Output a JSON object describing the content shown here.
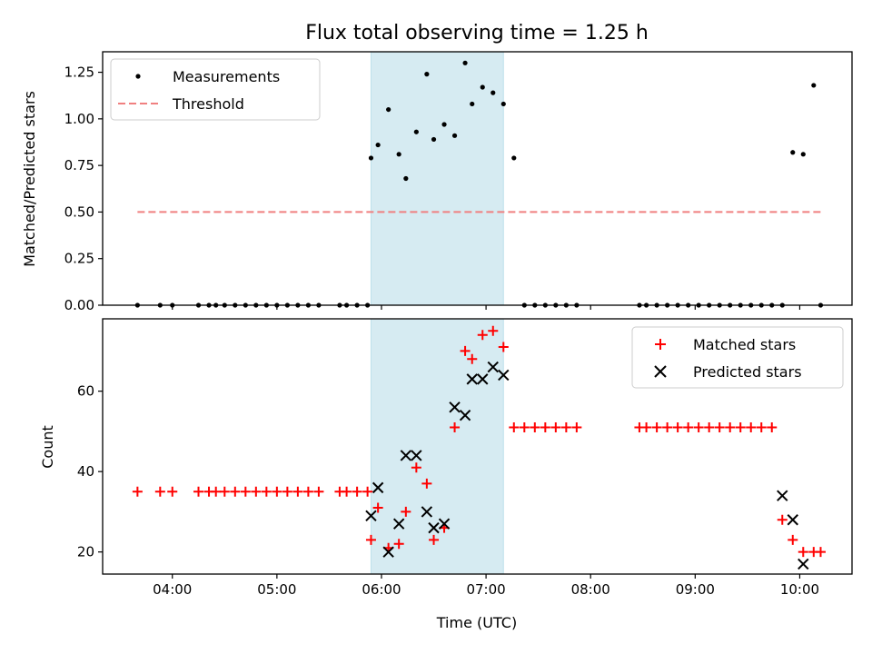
{
  "chart_data": [
    {
      "type": "scatter",
      "title": "Flux total observing time = 1.25 h",
      "xlabel": "",
      "ylabel": "Matched/Predicted stars",
      "xlim": [
        "03:20",
        "10:30"
      ],
      "ylim": [
        0,
        1.36
      ],
      "yticks": [
        "0.00",
        "0.25",
        "0.50",
        "0.75",
        "1.00",
        "1.25"
      ],
      "grid": false,
      "legend": {
        "position": "top-left"
      },
      "shaded_interval": [
        "05:54",
        "07:10"
      ],
      "shaded_color": "#add8e6",
      "series": [
        {
          "name": "Measurements",
          "marker": "dot",
          "color": "#000000",
          "x": [
            "03:40",
            "03:53",
            "04:00",
            "04:15",
            "04:21",
            "04:25",
            "04:30",
            "04:36",
            "04:42",
            "04:48",
            "04:54",
            "05:00",
            "05:06",
            "05:12",
            "05:18",
            "05:24",
            "05:36",
            "05:40",
            "05:46",
            "05:52",
            "05:54",
            "05:58",
            "06:04",
            "06:10",
            "06:14",
            "06:20",
            "06:26",
            "06:30",
            "06:36",
            "06:42",
            "06:48",
            "06:52",
            "06:58",
            "07:04",
            "07:10",
            "07:16",
            "07:22",
            "07:28",
            "07:34",
            "07:40",
            "07:46",
            "07:52",
            "08:28",
            "08:32",
            "08:38",
            "08:44",
            "08:50",
            "08:56",
            "09:02",
            "09:08",
            "09:14",
            "09:20",
            "09:26",
            "09:32",
            "09:38",
            "09:44",
            "09:50",
            "09:56",
            "10:02",
            "10:08",
            "10:12"
          ],
          "y": [
            0,
            0,
            0,
            0,
            0,
            0,
            0,
            0,
            0,
            0,
            0,
            0,
            0,
            0,
            0,
            0,
            0,
            0,
            0,
            0,
            0.79,
            0.86,
            1.05,
            0.81,
            0.68,
            0.93,
            1.24,
            0.89,
            0.97,
            0.91,
            1.3,
            1.08,
            1.17,
            1.14,
            1.08,
            0.79,
            0,
            0,
            0,
            0,
            0,
            0,
            0,
            0,
            0,
            0,
            0,
            0,
            0,
            0,
            0,
            0,
            0,
            0,
            0,
            0,
            0,
            0.82,
            0.81,
            1.18,
            0
          ]
        },
        {
          "name": "Threshold",
          "style": "dashed",
          "color": "#f08080",
          "x": [
            "03:40",
            "10:12"
          ],
          "y": [
            0.5,
            0.5
          ]
        }
      ]
    },
    {
      "type": "scatter",
      "title": "",
      "xlabel": "Time (UTC)",
      "ylabel": "Count",
      "xlim": [
        "03:20",
        "10:30"
      ],
      "ylim": [
        14.5,
        78
      ],
      "yticks": [
        "20",
        "40",
        "60"
      ],
      "xticks": [
        "04:00",
        "05:00",
        "06:00",
        "07:00",
        "08:00",
        "09:00",
        "10:00"
      ],
      "grid": false,
      "legend": {
        "position": "top-right"
      },
      "shaded_interval": [
        "05:54",
        "07:10"
      ],
      "shaded_color": "#add8e6",
      "series": [
        {
          "name": "Matched stars",
          "marker": "plus",
          "color": "#ff0000",
          "x": [
            "03:40",
            "03:53",
            "04:00",
            "04:15",
            "04:21",
            "04:25",
            "04:30",
            "04:36",
            "04:42",
            "04:48",
            "04:54",
            "05:00",
            "05:06",
            "05:12",
            "05:18",
            "05:24",
            "05:36",
            "05:40",
            "05:46",
            "05:52",
            "05:54",
            "05:58",
            "06:04",
            "06:10",
            "06:14",
            "06:20",
            "06:26",
            "06:30",
            "06:36",
            "06:42",
            "06:48",
            "06:52",
            "06:58",
            "07:04",
            "07:10",
            "07:16",
            "07:22",
            "07:28",
            "07:34",
            "07:40",
            "07:46",
            "07:52",
            "08:28",
            "08:32",
            "08:38",
            "08:44",
            "08:50",
            "08:56",
            "09:02",
            "09:08",
            "09:14",
            "09:20",
            "09:26",
            "09:32",
            "09:38",
            "09:44",
            "09:50",
            "09:56",
            "10:02",
            "10:08",
            "10:12"
          ],
          "y": [
            35,
            35,
            35,
            35,
            35,
            35,
            35,
            35,
            35,
            35,
            35,
            35,
            35,
            35,
            35,
            35,
            35,
            35,
            35,
            35,
            23,
            31,
            21,
            22,
            30,
            41,
            37,
            23,
            26,
            51,
            70,
            68,
            74,
            75,
            71,
            51,
            51,
            51,
            51,
            51,
            51,
            51,
            51,
            51,
            51,
            51,
            51,
            51,
            51,
            51,
            51,
            51,
            51,
            51,
            51,
            51,
            28,
            23,
            20,
            20,
            20
          ]
        },
        {
          "name": "Predicted stars",
          "marker": "x",
          "color": "#000000",
          "x": [
            "05:54",
            "05:58",
            "06:04",
            "06:10",
            "06:14",
            "06:20",
            "06:26",
            "06:30",
            "06:36",
            "06:42",
            "06:48",
            "06:52",
            "06:58",
            "07:04",
            "07:10",
            "09:50",
            "09:56",
            "10:02"
          ],
          "y": [
            29,
            36,
            20,
            27,
            44,
            44,
            30,
            26,
            27,
            56,
            54,
            63,
            63,
            66,
            64,
            34,
            28,
            17
          ]
        }
      ]
    }
  ]
}
